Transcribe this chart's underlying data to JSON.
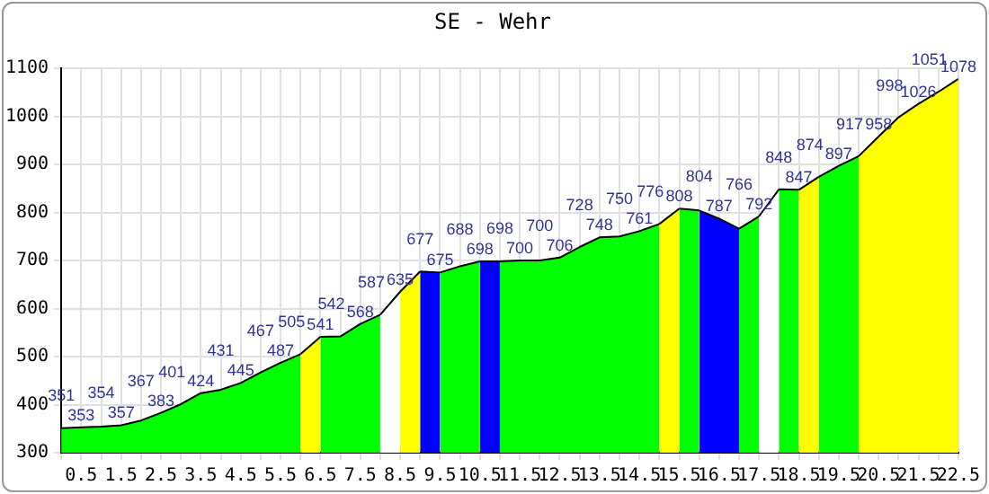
{
  "chart_data": {
    "type": "area",
    "title": "SE - Wehr",
    "series": [
      {
        "color": "#00ff00",
        "x": [
          0,
          0.5,
          1,
          1.5,
          2,
          2.5,
          3,
          3.5,
          4,
          4.5,
          5,
          5.5,
          6
        ],
        "values": [
          351,
          353,
          354,
          357,
          367,
          383,
          401,
          424,
          431,
          445,
          467,
          487,
          505
        ]
      },
      {
        "color": "#ffff00",
        "x": [
          6,
          6.5
        ],
        "values": [
          505,
          541
        ],
        "value_labels": [
          null,
          "541"
        ]
      },
      {
        "color": "#00ff00",
        "x": [
          6.5,
          7,
          7.5,
          8
        ],
        "values": [
          541,
          542,
          568,
          587
        ],
        "value_labels": [
          null,
          "542",
          "568",
          "587"
        ]
      },
      {
        "color": "#ffffff",
        "x": [
          8,
          8.5
        ],
        "values": [
          587,
          635
        ],
        "value_labels": [
          null,
          "635"
        ]
      },
      {
        "color": "#ffff00",
        "x": [
          8.5,
          9
        ],
        "values": [
          635,
          677
        ],
        "value_labels": [
          null,
          "677"
        ]
      },
      {
        "color": "#0000ff",
        "x": [
          9,
          9.5
        ],
        "values": [
          677,
          675
        ],
        "value_labels": [
          null,
          "675"
        ]
      },
      {
        "color": "#00ff00",
        "x": [
          9.5,
          10,
          10.5
        ],
        "values": [
          675,
          688,
          698
        ],
        "value_labels": [
          null,
          "688",
          "698"
        ]
      },
      {
        "color": "#0000ff",
        "x": [
          10.5,
          11
        ],
        "values": [
          698,
          698
        ],
        "value_labels": [
          null,
          "698"
        ]
      },
      {
        "color": "#00ff00",
        "x": [
          11,
          11.5,
          12,
          12.5,
          13,
          13.5,
          14,
          14.5,
          15
        ],
        "values": [
          698,
          700,
          700,
          706,
          728,
          748,
          750,
          761,
          776
        ],
        "value_labels": [
          null,
          "700",
          "700",
          "706",
          "728",
          "748",
          "750",
          "761",
          "776"
        ]
      },
      {
        "color": "#ffff00",
        "x": [
          15,
          15.5
        ],
        "values": [
          776,
          808
        ],
        "value_labels": [
          null,
          "808"
        ]
      },
      {
        "color": "#00ff00",
        "x": [
          15.5,
          16
        ],
        "values": [
          808,
          804
        ],
        "value_labels": [
          null,
          "804"
        ]
      },
      {
        "color": "#0000ff",
        "x": [
          16,
          16.5,
          17
        ],
        "values": [
          804,
          787,
          766
        ],
        "value_labels": [
          null,
          "787",
          "766"
        ]
      },
      {
        "color": "#00ff00",
        "x": [
          17,
          17.5
        ],
        "values": [
          766,
          792
        ],
        "value_labels": [
          null,
          "792"
        ]
      },
      {
        "color": "#ffffff",
        "x": [
          17.5,
          18
        ],
        "values": [
          792,
          848
        ],
        "value_labels": [
          null,
          "848"
        ]
      },
      {
        "color": "#00ff00",
        "x": [
          18,
          18.5
        ],
        "values": [
          848,
          847
        ],
        "value_labels": [
          null,
          "847"
        ]
      },
      {
        "color": "#ffff00",
        "x": [
          18.5,
          19
        ],
        "values": [
          847,
          874
        ],
        "value_labels": [
          null,
          "874"
        ]
      },
      {
        "color": "#00ff00",
        "x": [
          19,
          19.5,
          20
        ],
        "values": [
          874,
          897,
          917
        ],
        "value_labels": [
          null,
          "897",
          "917"
        ]
      },
      {
        "color": "#ffff00",
        "x": [
          20,
          20.5,
          21,
          21.5,
          22,
          22.5
        ],
        "values": [
          917,
          958,
          998,
          1026,
          1051,
          1078
        ],
        "value_labels": [
          null,
          "958",
          "998",
          "1026",
          "1051",
          "1078"
        ]
      }
    ],
    "data_labels": true,
    "grid": true,
    "xlim": [
      0,
      22.5
    ],
    "ylim": [
      300,
      1100
    ],
    "xticks": [
      {
        "value": 0,
        "label": null
      },
      0.5,
      {
        "value": 1,
        "label": null
      },
      1.5,
      {
        "value": 2,
        "label": null
      },
      2.5,
      {
        "value": 3,
        "label": null
      },
      3.5,
      {
        "value": 4,
        "label": null
      },
      4.5,
      {
        "value": 5,
        "label": null
      },
      5.5,
      {
        "value": 6,
        "label": null
      },
      6.5,
      {
        "value": 7,
        "label": null
      },
      7.5,
      {
        "value": 8,
        "label": null
      },
      8.5,
      {
        "value": 9,
        "label": null
      },
      9.5,
      {
        "value": 10,
        "label": null
      },
      10.5,
      {
        "value": 11,
        "label": null
      },
      11.5,
      {
        "value": 12,
        "label": null
      },
      12.5,
      {
        "value": 13,
        "label": null
      },
      13.5,
      {
        "value": 14,
        "label": null
      },
      14.5,
      {
        "value": 15,
        "label": null
      },
      15.5,
      {
        "value": 16,
        "label": null
      },
      16.5,
      {
        "value": 17,
        "label": null
      },
      17.5,
      {
        "value": 18,
        "label": null
      },
      18.5,
      {
        "value": 19,
        "label": null
      },
      19.5,
      {
        "value": 20,
        "label": null
      },
      20.5,
      {
        "value": 21,
        "label": null
      },
      21.5,
      {
        "value": 22,
        "label": null
      },
      22.5
    ],
    "yticks": [
      300,
      400,
      500,
      600,
      700,
      800,
      900,
      1000,
      1100
    ]
  }
}
